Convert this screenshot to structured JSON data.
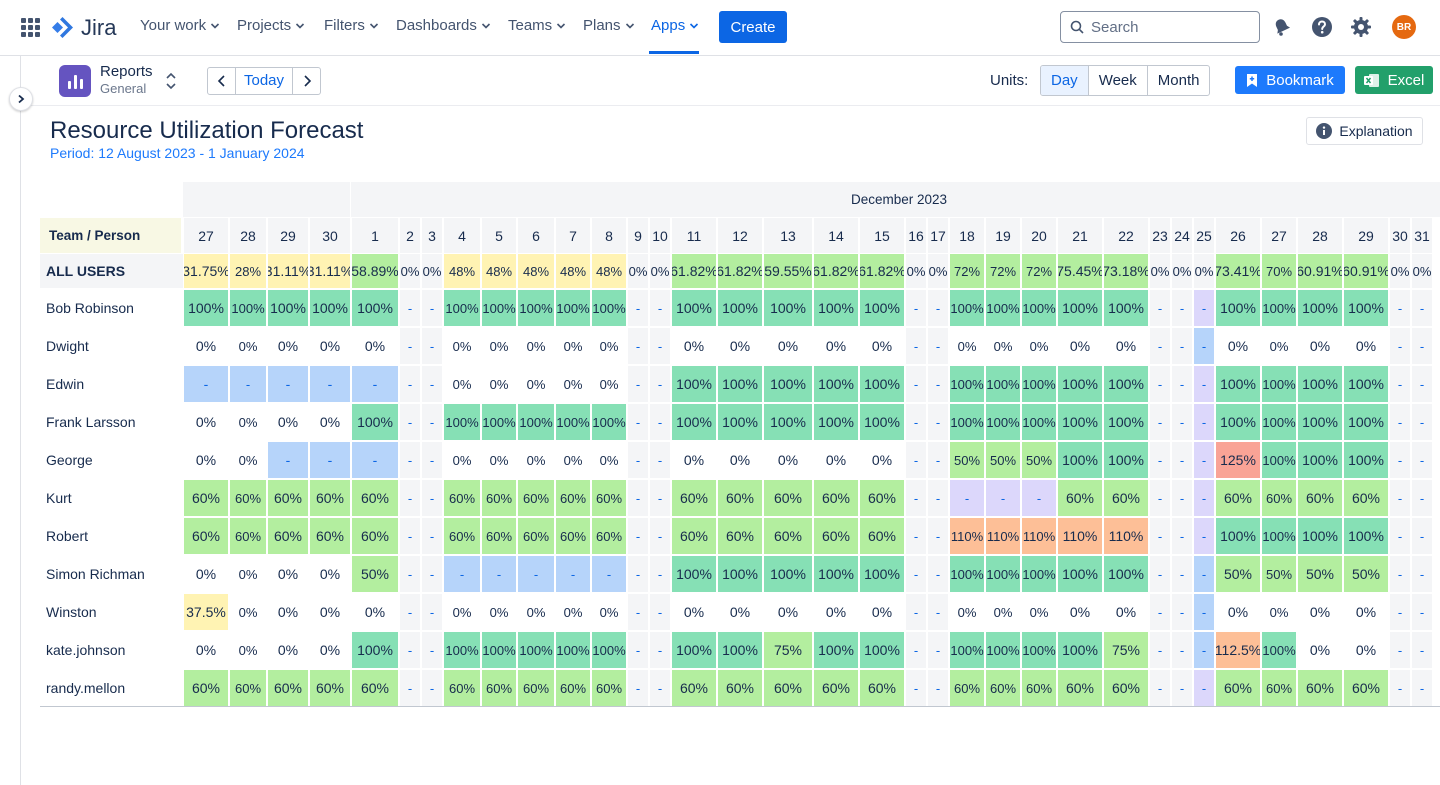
{
  "nav": {
    "logo": "Jira",
    "items": [
      {
        "label": "Your work",
        "x": 140
      },
      {
        "label": "Projects",
        "x": 237
      },
      {
        "label": "Filters",
        "x": 324
      },
      {
        "label": "Dashboards",
        "x": 396
      },
      {
        "label": "Teams",
        "x": 508
      },
      {
        "label": "Plans",
        "x": 583
      },
      {
        "label": "Apps",
        "x": 651
      }
    ],
    "create_label": "Create",
    "search_placeholder": "Search",
    "avatar_initials": "BR"
  },
  "toolbar": {
    "reports_title": "Reports",
    "reports_sub": "General",
    "today_label": "Today",
    "units_label": "Units:",
    "units": [
      "Day",
      "Week",
      "Month"
    ],
    "selected_unit": "Day",
    "bookmark_label": "Bookmark",
    "excel_label": "Excel"
  },
  "report": {
    "title": "Resource Utilization Forecast",
    "period": "Period: 12 August 2023 - 1 January 2024",
    "explanation_label": "Explanation",
    "month_label": "December 2023",
    "corner_label": "Team / Person",
    "days": [
      "27",
      "28",
      "29",
      "30",
      "1",
      "2",
      "3",
      "4",
      "5",
      "6",
      "7",
      "8",
      "9",
      "10",
      "11",
      "12",
      "13",
      "14",
      "15",
      "16",
      "17",
      "18",
      "19",
      "20",
      "21",
      "22",
      "23",
      "24",
      "25",
      "26",
      "27",
      "28",
      "29",
      "30",
      "31"
    ],
    "rows": [
      {
        "name": "ALL USERS",
        "total": true,
        "values": [
          "31.75%",
          "28%",
          "31.11%",
          "31.11%",
          "58.89%",
          "0%",
          "0%",
          "48%",
          "48%",
          "48%",
          "48%",
          "48%",
          "0%",
          "0%",
          "61.82%",
          "61.82%",
          "59.55%",
          "61.82%",
          "61.82%",
          "0%",
          "0%",
          "72%",
          "72%",
          "72%",
          "75.45%",
          "73.18%",
          "0%",
          "0%",
          "0%",
          "73.41%",
          "70%",
          "60.91%",
          "60.91%",
          "0%",
          "0%"
        ]
      },
      {
        "name": "Bob Robinson",
        "values": [
          "100%",
          "100%",
          "100%",
          "100%",
          "100%",
          "-",
          "-",
          "100%",
          "100%",
          "100%",
          "100%",
          "100%",
          "-",
          "-",
          "100%",
          "100%",
          "100%",
          "100%",
          "100%",
          "-",
          "-",
          "100%",
          "100%",
          "100%",
          "100%",
          "100%",
          "-",
          "-",
          "-",
          "100%",
          "100%",
          "100%",
          "100%",
          "-",
          "-"
        ]
      },
      {
        "name": "Dwight",
        "values": [
          "0%",
          "0%",
          "0%",
          "0%",
          "0%",
          "-",
          "-",
          "0%",
          "0%",
          "0%",
          "0%",
          "0%",
          "-",
          "-",
          "0%",
          "0%",
          "0%",
          "0%",
          "0%",
          "-",
          "-",
          "0%",
          "0%",
          "0%",
          "0%",
          "0%",
          "-",
          "-",
          "-",
          "0%",
          "0%",
          "0%",
          "0%",
          "-",
          "-"
        ]
      },
      {
        "name": "Edwin",
        "values": [
          "-",
          "-",
          "-",
          "-",
          "-",
          "-",
          "-",
          "0%",
          "0%",
          "0%",
          "0%",
          "0%",
          "-",
          "-",
          "100%",
          "100%",
          "100%",
          "100%",
          "100%",
          "-",
          "-",
          "100%",
          "100%",
          "100%",
          "100%",
          "100%",
          "-",
          "-",
          "-",
          "100%",
          "100%",
          "100%",
          "100%",
          "-",
          "-"
        ]
      },
      {
        "name": "Frank Larsson",
        "values": [
          "0%",
          "0%",
          "0%",
          "0%",
          "100%",
          "-",
          "-",
          "100%",
          "100%",
          "100%",
          "100%",
          "100%",
          "-",
          "-",
          "100%",
          "100%",
          "100%",
          "100%",
          "100%",
          "-",
          "-",
          "100%",
          "100%",
          "100%",
          "100%",
          "100%",
          "-",
          "-",
          "-",
          "100%",
          "100%",
          "100%",
          "100%",
          "-",
          "-"
        ]
      },
      {
        "name": "George",
        "values": [
          "0%",
          "0%",
          "-",
          "-",
          "-",
          "-",
          "-",
          "0%",
          "0%",
          "0%",
          "0%",
          "0%",
          "-",
          "-",
          "0%",
          "0%",
          "0%",
          "0%",
          "0%",
          "-",
          "-",
          "50%",
          "50%",
          "50%",
          "100%",
          "100%",
          "-",
          "-",
          "-",
          "125%",
          "100%",
          "100%",
          "100%",
          "-",
          "-"
        ]
      },
      {
        "name": "Kurt",
        "values": [
          "60%",
          "60%",
          "60%",
          "60%",
          "60%",
          "-",
          "-",
          "60%",
          "60%",
          "60%",
          "60%",
          "60%",
          "-",
          "-",
          "60%",
          "60%",
          "60%",
          "60%",
          "60%",
          "-",
          "-",
          "-",
          "-",
          "-",
          "60%",
          "60%",
          "-",
          "-",
          "-",
          "60%",
          "60%",
          "60%",
          "60%",
          "-",
          "-"
        ]
      },
      {
        "name": "Robert",
        "values": [
          "60%",
          "60%",
          "60%",
          "60%",
          "60%",
          "-",
          "-",
          "60%",
          "60%",
          "60%",
          "60%",
          "60%",
          "-",
          "-",
          "60%",
          "60%",
          "60%",
          "60%",
          "60%",
          "-",
          "-",
          "110%",
          "110%",
          "110%",
          "110%",
          "110%",
          "-",
          "-",
          "-",
          "100%",
          "100%",
          "100%",
          "100%",
          "-",
          "-"
        ]
      },
      {
        "name": "Simon Richman",
        "values": [
          "0%",
          "0%",
          "0%",
          "0%",
          "50%",
          "-",
          "-",
          "-",
          "-",
          "-",
          "-",
          "-",
          "-",
          "-",
          "100%",
          "100%",
          "100%",
          "100%",
          "100%",
          "-",
          "-",
          "100%",
          "100%",
          "100%",
          "100%",
          "100%",
          "-",
          "-",
          "-",
          "50%",
          "50%",
          "50%",
          "50%",
          "-",
          "-"
        ]
      },
      {
        "name": "Winston",
        "values": [
          "37.5%",
          "0%",
          "0%",
          "0%",
          "0%",
          "-",
          "-",
          "0%",
          "0%",
          "0%",
          "0%",
          "0%",
          "-",
          "-",
          "0%",
          "0%",
          "0%",
          "0%",
          "0%",
          "-",
          "-",
          "0%",
          "0%",
          "0%",
          "0%",
          "0%",
          "-",
          "-",
          "-",
          "0%",
          "0%",
          "0%",
          "0%",
          "-",
          "-"
        ]
      },
      {
        "name": "kate.johnson",
        "values": [
          "0%",
          "0%",
          "0%",
          "0%",
          "100%",
          "-",
          "-",
          "100%",
          "100%",
          "100%",
          "100%",
          "100%",
          "-",
          "-",
          "100%",
          "100%",
          "75%",
          "100%",
          "100%",
          "-",
          "-",
          "100%",
          "100%",
          "100%",
          "100%",
          "75%",
          "-",
          "-",
          "-",
          "112.5%",
          "100%",
          "0%",
          "0%",
          "-",
          "-"
        ]
      },
      {
        "name": "randy.mellon",
        "values": [
          "60%",
          "60%",
          "60%",
          "60%",
          "60%",
          "-",
          "-",
          "60%",
          "60%",
          "60%",
          "60%",
          "60%",
          "-",
          "-",
          "60%",
          "60%",
          "60%",
          "60%",
          "60%",
          "-",
          "-",
          "60%",
          "60%",
          "60%",
          "60%",
          "60%",
          "-",
          "-",
          "-",
          "60%",
          "60%",
          "60%",
          "60%",
          "-",
          "-"
        ]
      }
    ],
    "special": {
      "blue_dash": [
        "Edwin:0",
        "Edwin:1",
        "Edwin:2",
        "Edwin:3",
        "Edwin:4",
        "George:2",
        "George:3",
        "George:4",
        "Simon Richman:7",
        "Simon Richman:8",
        "Simon Richman:9",
        "Simon Richman:10",
        "Simon Richman:11",
        "Dwight:28",
        "Simon Richman:28",
        "Winston:28",
        "kate.johnson:28"
      ],
      "purple_dash": [
        "Kurt:21",
        "Kurt:22",
        "Kurt:23",
        "Bob Robinson:28",
        "Edwin:28",
        "Frank Larsson:28",
        "George:28",
        "Kurt:28",
        "Robert:28",
        "randy.mellon:28"
      ]
    }
  },
  "colors": {
    "full": "#86e0b5",
    "partial": "#b3ee9f",
    "low": "#fff3b3",
    "over": "#fdbf97",
    "overHigh": "#f9a396",
    "blueDash": "#b6d4fa",
    "purpleDash": "#dcd7fb",
    "weekend": "#f4f5f7",
    "accent": "#0c66e4"
  }
}
